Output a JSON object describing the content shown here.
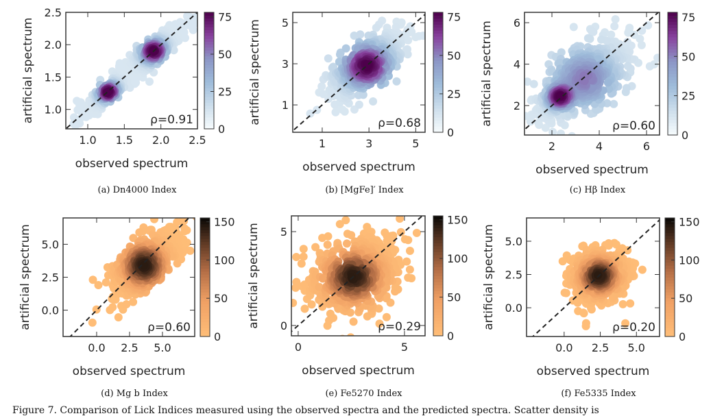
{
  "figure_caption": "Figure 7. Comparison of Lick Indices measured using the observed spectra and the predicted spectra. Scatter density is",
  "chart_data": [
    {
      "type": "scatter",
      "subcaption": "(a) Dn4000 Index",
      "xlabel": "observed spectrum",
      "ylabel": "artificial spectrum",
      "xlim": [
        0.7,
        2.5
      ],
      "ylim": [
        0.7,
        2.5
      ],
      "xticks": [
        "1.0",
        "1.5",
        "2.0",
        "2.5"
      ],
      "yticks": [
        "1.0",
        "1.5",
        "2.0",
        "2.5"
      ],
      "rho_label": "ρ=0.91",
      "colorbar": {
        "cmap": "BuPu",
        "range": [
          0,
          78
        ],
        "ticks": [
          "0",
          "25",
          "50",
          "75"
        ]
      },
      "density_peaks": [
        {
          "x": 1.28,
          "y": 1.27,
          "sd": 0.1
        },
        {
          "x": 1.9,
          "y": 1.9,
          "sd": 0.12
        }
      ],
      "correlation": 0.91,
      "reference_line": "y=x"
    },
    {
      "type": "scatter",
      "subcaption": "(b) [MgFe]′ Index",
      "xlabel": "observed spectrum",
      "ylabel": "artificial spectrum",
      "xlim": [
        -0.26,
        5.4
      ],
      "ylim": [
        -0.33,
        5.5
      ],
      "xticks": [
        "1",
        "3",
        "5"
      ],
      "yticks": [
        "1",
        "3",
        "5"
      ],
      "rho_label": "ρ=0.68",
      "colorbar": {
        "cmap": "BuPu",
        "range": [
          0,
          78
        ],
        "ticks": [
          "0",
          "25",
          "50",
          "75"
        ]
      },
      "density_peaks": [
        {
          "x": 2.9,
          "y": 2.9,
          "sd": 0.75
        }
      ],
      "correlation": 0.68,
      "reference_line": "y=x"
    },
    {
      "type": "scatter",
      "subcaption": "(c) Hβ Index",
      "xlabel": "observed spectrum",
      "ylabel": "artificial spectrum",
      "xlim": [
        0.84,
        6.55
      ],
      "ylim": [
        0.58,
        6.5
      ],
      "xticks": [
        "2",
        "4",
        "6"
      ],
      "yticks": [
        "2",
        "4",
        "6"
      ],
      "rho_label": "ρ=0.60",
      "colorbar": {
        "cmap": "BuPu",
        "range": [
          0,
          78
        ],
        "ticks": [
          "0",
          "25",
          "50",
          "75"
        ]
      },
      "density_peaks": [
        {
          "x": 2.3,
          "y": 2.4,
          "sd": 0.35
        },
        {
          "x": 3.4,
          "y": 3.3,
          "sd": 0.95
        }
      ],
      "correlation": 0.6,
      "reference_line": "y=x"
    },
    {
      "type": "scatter",
      "subcaption": "(d) Mg b Index",
      "xlabel": "observed spectrum",
      "ylabel": "artificial spectrum",
      "xlim": [
        -2.55,
        7.45
      ],
      "ylim": [
        -2.0,
        7.0
      ],
      "xticks": [
        "0.0",
        "2.5",
        "5.0"
      ],
      "yticks": [
        "0.0",
        "2.5",
        "5.0"
      ],
      "rho_label": "ρ=0.60",
      "colorbar": {
        "cmap": "copper_r",
        "range": [
          0,
          155
        ],
        "ticks": [
          "0",
          "50",
          "100",
          "150"
        ]
      },
      "density_peaks": [
        {
          "x": 3.6,
          "y": 3.4,
          "sd": 1.2
        }
      ],
      "correlation": 0.6,
      "reference_line": "y=x"
    },
    {
      "type": "scatter",
      "subcaption": "(e) Fe5270 Index",
      "xlabel": "observed spectrum",
      "ylabel": "artificial spectrum",
      "xlim": [
        -0.32,
        5.97
      ],
      "ylim": [
        -0.55,
        5.84
      ],
      "xticks": [
        "0",
        "5"
      ],
      "yticks": [
        "0",
        "5"
      ],
      "rho_label": "ρ=0.29",
      "colorbar": {
        "cmap": "copper_r",
        "range": [
          0,
          155
        ],
        "ticks": [
          "0",
          "50",
          "100",
          "150"
        ]
      },
      "density_peaks": [
        {
          "x": 2.6,
          "y": 2.6,
          "sd": 1.0
        }
      ],
      "correlation": 0.29,
      "reference_line": "y=x"
    },
    {
      "type": "scatter",
      "subcaption": "(f) Fe5335 Index",
      "xlabel": "observed spectrum",
      "ylabel": "artificial spectrum",
      "xlim": [
        -2.6,
        6.6
      ],
      "ylim": [
        -2.16,
        6.75
      ],
      "xticks": [
        "0.0",
        "2.5",
        "5.0"
      ],
      "yticks": [
        "0.0",
        "2.5",
        "5.0"
      ],
      "rho_label": "ρ=0.20",
      "colorbar": {
        "cmap": "copper_r",
        "range": [
          0,
          155
        ],
        "ticks": [
          "0",
          "50",
          "100",
          "150"
        ]
      },
      "density_peaks": [
        {
          "x": 2.4,
          "y": 2.4,
          "sd": 0.95
        }
      ],
      "correlation": 0.2,
      "reference_line": "y=x"
    }
  ]
}
